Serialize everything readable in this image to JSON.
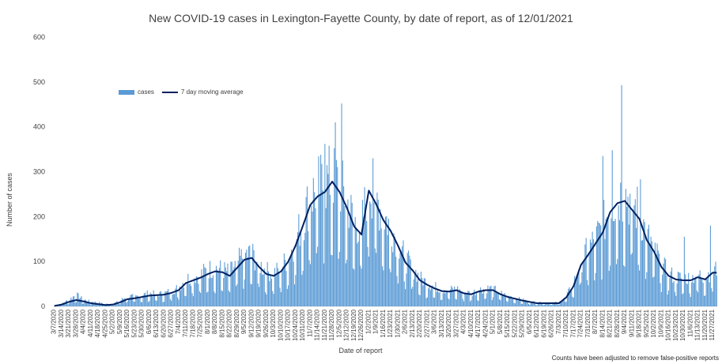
{
  "chart_data": {
    "type": "bar",
    "title": "New COVID-19 cases in Lexington-Fayette County, by date of report, as of 12/01/2021",
    "xlabel": "Date of report",
    "ylabel": "Number of cases",
    "footnote": "Counts have been adjusted to remove false-positive reports",
    "ylim": [
      0,
      600
    ],
    "yticks": [
      0,
      100,
      200,
      300,
      400,
      500,
      600
    ],
    "legend_position": "top-left",
    "colors": {
      "cases": "#5b9bd5",
      "moving_average": "#002060"
    },
    "x_start": "3/7/2020",
    "x_end": "12/1/2021",
    "x_ticks": [
      "3/7/2020",
      "3/14/2020",
      "3/21/2020",
      "3/28/2020",
      "4/4/2020",
      "4/11/2020",
      "4/18/2020",
      "4/25/2020",
      "5/2/2020",
      "5/9/2020",
      "5/16/2020",
      "5/23/2020",
      "5/30/2020",
      "6/6/2020",
      "6/13/2020",
      "6/20/2020",
      "6/27/2020",
      "7/4/2020",
      "7/11/2020",
      "7/18/2020",
      "7/25/2020",
      "8/1/2020",
      "8/8/2020",
      "8/15/2020",
      "8/22/2020",
      "8/29/2020",
      "9/5/2020",
      "9/12/2020",
      "9/19/2020",
      "9/26/2020",
      "10/3/2020",
      "10/10/2020",
      "10/17/2020",
      "10/24/2020",
      "10/31/2020",
      "11/7/2020",
      "11/14/2020",
      "11/21/2020",
      "11/28/2020",
      "12/5/2020",
      "12/12/2020",
      "12/19/2020",
      "12/26/2020",
      "1/2/2021",
      "1/9/2021",
      "1/16/2021",
      "1/23/2021",
      "1/30/2021",
      "2/6/2021",
      "2/13/2021",
      "2/20/2021",
      "2/27/2021",
      "3/6/2021",
      "3/13/2021",
      "3/20/2021",
      "3/27/2021",
      "4/3/2021",
      "4/10/2021",
      "4/17/2021",
      "4/24/2021",
      "5/1/2021",
      "5/8/2021",
      "5/15/2021",
      "5/22/2021",
      "5/29/2021",
      "6/5/2021",
      "6/12/2021",
      "6/19/2021",
      "6/26/2021",
      "7/3/2021",
      "7/10/2021",
      "7/17/2021",
      "7/24/2021",
      "7/31/2021",
      "8/7/2021",
      "8/14/2021",
      "8/21/2021",
      "8/28/2021",
      "9/4/2021",
      "9/11/2021",
      "9/18/2021",
      "9/25/2021",
      "10/2/2021",
      "10/9/2021",
      "10/16/2021",
      "10/23/2021",
      "10/30/2021",
      "11/6/2021",
      "11/13/2021",
      "11/20/2021",
      "11/27/2021"
    ],
    "series": [
      {
        "name": "cases",
        "type": "bar",
        "weekly_values": [
          2,
          6,
          14,
          25,
          14,
          10,
          8,
          5,
          5,
          12,
          22,
          20,
          24,
          28,
          26,
          27,
          33,
          40,
          58,
          62,
          68,
          78,
          82,
          78,
          72,
          92,
          110,
          112,
          90,
          75,
          70,
          82,
          105,
          140,
          185,
          232,
          252,
          262,
          275,
          260,
          225,
          180,
          168,
          265,
          232,
          195,
          170,
          138,
          100,
          82,
          60,
          50,
          42,
          36,
          35,
          38,
          30,
          28,
          35,
          38,
          38,
          28,
          22,
          18,
          14,
          10,
          8,
          8,
          8,
          8,
          22,
          48,
          98,
          120,
          145,
          170,
          215,
          235,
          240,
          220,
          200,
          150,
          125,
          90,
          70,
          62,
          60,
          60,
          68,
          62,
          78
        ],
        "peaks": [
          {
            "x": "12/7/2020",
            "y": 452
          },
          {
            "x": "12/1/2020",
            "y": 410
          },
          {
            "x": "11/21/2020",
            "y": 362
          },
          {
            "x": "1/6/2021",
            "y": 330
          },
          {
            "x": "9/1/2021",
            "y": 493
          },
          {
            "x": "8/14/2021",
            "y": 335
          },
          {
            "x": "8/23/2021",
            "y": 348
          },
          {
            "x": "9/19/2021",
            "y": 283
          },
          {
            "x": "10/31/2021",
            "y": 155
          },
          {
            "x": "11/25/2021",
            "y": 180
          }
        ]
      },
      {
        "name": "7 day moving average",
        "type": "line",
        "weekly_values": [
          1,
          4,
          10,
          14,
          11,
          7,
          5,
          3,
          4,
          9,
          16,
          18,
          21,
          24,
          25,
          26,
          30,
          36,
          52,
          58,
          64,
          72,
          78,
          76,
          68,
          86,
          104,
          108,
          88,
          72,
          68,
          78,
          100,
          136,
          180,
          226,
          245,
          255,
          278,
          255,
          220,
          178,
          160,
          258,
          228,
          192,
          168,
          135,
          98,
          80,
          58,
          48,
          40,
          34,
          33,
          36,
          29,
          27,
          33,
          36,
          36,
          27,
          21,
          17,
          13,
          10,
          7,
          7,
          7,
          7,
          20,
          45,
          92,
          115,
          140,
          165,
          210,
          230,
          235,
          215,
          195,
          148,
          122,
          88,
          68,
          60,
          58,
          58,
          65,
          60,
          75
        ]
      }
    ]
  }
}
